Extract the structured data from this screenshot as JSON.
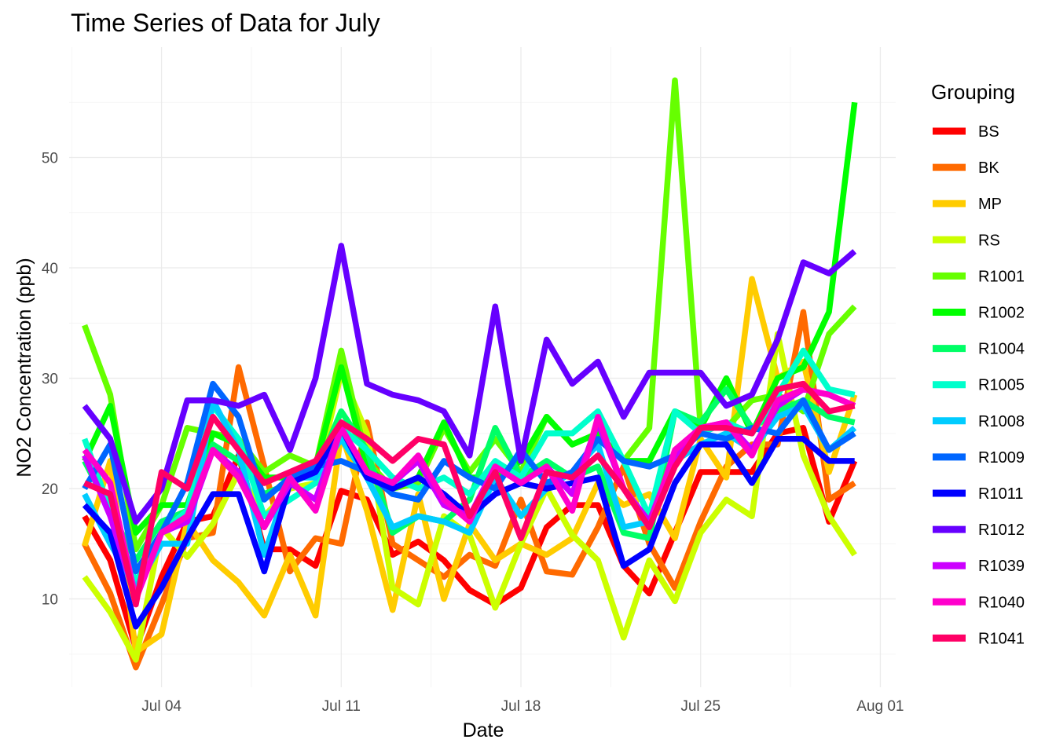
{
  "chart_data": {
    "type": "line",
    "title": "Time Series of Data for July",
    "xlabel": "Date",
    "ylabel": "NO2 Concentration (ppb)",
    "x": [
      "Jul 01",
      "Jul 02",
      "Jul 03",
      "Jul 04",
      "Jul 05",
      "Jul 06",
      "Jul 07",
      "Jul 08",
      "Jul 09",
      "Jul 10",
      "Jul 11",
      "Jul 12",
      "Jul 13",
      "Jul 14",
      "Jul 15",
      "Jul 16",
      "Jul 17",
      "Jul 18",
      "Jul 19",
      "Jul 20",
      "Jul 21",
      "Jul 22",
      "Jul 23",
      "Jul 24",
      "Jul 25",
      "Jul 26",
      "Jul 27",
      "Jul 28",
      "Jul 29",
      "Jul 30",
      "Jul 31"
    ],
    "x_ticks": [
      "Jul 04",
      "Jul 11",
      "Jul 18",
      "Jul 25",
      "Aug 01"
    ],
    "x_tick_index": [
      3,
      10,
      17,
      24,
      31
    ],
    "xlim_index": [
      -0.6,
      31.6
    ],
    "y_ticks": [
      10,
      20,
      30,
      40,
      50
    ],
    "ylim": [
      2,
      60
    ],
    "grid": true,
    "legend": {
      "title": "Grouping",
      "position": "right"
    },
    "series": [
      {
        "name": "BS",
        "color": "#FF0000",
        "values": [
          17.5,
          13.5,
          5.5,
          12,
          17,
          17.5,
          23,
          14.5,
          14.5,
          13,
          19.8,
          19,
          14,
          15.2,
          13.5,
          10.8,
          9.5,
          11,
          16.5,
          18.5,
          18.5,
          13,
          10.5,
          16,
          21.5,
          21.5,
          21.5,
          25,
          25.5,
          17,
          22.5
        ]
      },
      {
        "name": "BK",
        "color": "#FF6A00",
        "values": [
          15,
          10.5,
          3.8,
          9.5,
          15.5,
          16,
          31,
          22,
          12.5,
          15.5,
          15,
          26,
          15,
          13.5,
          12,
          14,
          13,
          19,
          12.5,
          12.2,
          16.5,
          22,
          15,
          11,
          17,
          22,
          24,
          24,
          36,
          19,
          20.5
        ]
      },
      {
        "name": "MP",
        "color": "#FFCC00",
        "values": [
          14.8,
          22.5,
          5.2,
          6.8,
          17,
          13.5,
          11.5,
          8.5,
          14,
          8.5,
          25,
          18,
          9,
          19.5,
          10,
          16.8,
          13.5,
          15,
          14,
          15.5,
          20.5,
          18.5,
          19.5,
          15.5,
          24.5,
          21,
          39,
          30,
          31.5,
          21.5,
          28.5
        ]
      },
      {
        "name": "RS",
        "color": "#CCFF00",
        "values": [
          12,
          8.8,
          4.5,
          16.5,
          13.8,
          16.8,
          21.5,
          17.5,
          20,
          20.5,
          30.5,
          25,
          11,
          9.5,
          17.5,
          15.8,
          9.2,
          15,
          20,
          15.8,
          13.5,
          6.5,
          13.5,
          9.8,
          16,
          19,
          17.5,
          34,
          23,
          17.5,
          14
        ]
      },
      {
        "name": "R1001",
        "color": "#66FF00",
        "values": [
          34.8,
          28.5,
          14.5,
          18.5,
          25.5,
          25,
          24.5,
          21.5,
          23,
          22,
          32.5,
          22.5,
          20,
          20.5,
          25.5,
          21.5,
          24.5,
          21.5,
          26.5,
          24,
          25,
          22.5,
          25.5,
          57,
          25.5,
          25.5,
          28,
          28.5,
          27,
          34,
          36.5
        ]
      },
      {
        "name": "R1002",
        "color": "#00FF00",
        "values": [
          22.5,
          27.5,
          16,
          18.5,
          18.5,
          25,
          24,
          21,
          21,
          22,
          31,
          22,
          20,
          21,
          26,
          21,
          21,
          22.5,
          26.5,
          24,
          25,
          22.5,
          22.5,
          27,
          25.5,
          30,
          25,
          30,
          31,
          36,
          55
        ]
      },
      {
        "name": "R1004",
        "color": "#00FF66",
        "values": [
          22.5,
          18,
          13.5,
          17,
          18,
          24,
          22.5,
          19.5,
          20.5,
          21.5,
          27,
          23.5,
          16,
          17.5,
          17,
          19,
          25.5,
          21,
          22.5,
          21,
          22,
          16,
          15.5,
          27,
          26,
          29,
          25.5,
          27,
          28,
          26.5,
          26
        ]
      },
      {
        "name": "R1005",
        "color": "#00FFCC",
        "values": [
          24.5,
          18,
          11.5,
          16,
          18,
          27.5,
          24.5,
          17.5,
          19,
          20.5,
          25.5,
          23.5,
          21,
          20,
          21,
          19.5,
          22.5,
          21,
          25,
          25,
          27,
          22.5,
          17.5,
          27,
          25,
          26,
          25,
          28.5,
          32.5,
          29,
          28.5
        ]
      },
      {
        "name": "R1008",
        "color": "#00CCFF",
        "values": [
          19.5,
          15,
          11,
          15,
          15,
          28,
          23.5,
          14,
          21,
          21,
          24.5,
          21,
          16.5,
          17.5,
          17,
          16,
          21,
          17.5,
          20,
          21.5,
          24,
          16.5,
          17,
          22.5,
          24,
          25,
          23.5,
          26.5,
          27.5,
          23.5,
          25.5
        ]
      },
      {
        "name": "R1009",
        "color": "#0066FF",
        "values": [
          20,
          24,
          12.5,
          16,
          20.5,
          29.5,
          26.5,
          19,
          21,
          22,
          22.5,
          21.5,
          19.5,
          19,
          22.5,
          21,
          20,
          23.5,
          20.5,
          21.5,
          24.5,
          22.5,
          22,
          23,
          25,
          24.5,
          25.5,
          25,
          28,
          23.5,
          25
        ]
      },
      {
        "name": "R1011",
        "color": "#0000FF",
        "values": [
          18.5,
          16,
          7.5,
          11,
          15.5,
          19.5,
          19.5,
          12.5,
          20.5,
          21.5,
          25.5,
          21,
          20,
          21,
          19.5,
          17.5,
          19.5,
          20.5,
          20,
          20.5,
          21,
          13,
          14.5,
          20.5,
          24,
          24,
          20.5,
          24.5,
          24.5,
          22.5,
          22.5
        ]
      },
      {
        "name": "R1012",
        "color": "#6600FF",
        "values": [
          27.5,
          24.5,
          17,
          20,
          28,
          28,
          27.5,
          28.5,
          23.5,
          30,
          42,
          29.5,
          28.5,
          28,
          27,
          23,
          36.5,
          22.5,
          33.5,
          29.5,
          31.5,
          26.5,
          30.5,
          30.5,
          30.5,
          27.5,
          28.5,
          33.5,
          40.5,
          39.5,
          41.5
        ]
      },
      {
        "name": "R1039",
        "color": "#CC00FF",
        "values": [
          23,
          17.5,
          10,
          16,
          17,
          23.5,
          21.5,
          16.5,
          20.5,
          19,
          25.5,
          21.5,
          20.5,
          22.5,
          18.5,
          17.5,
          22,
          20.5,
          22,
          19.5,
          26,
          20,
          17,
          23,
          25.5,
          26,
          23.5,
          27.5,
          29,
          28.5,
          27.5
        ]
      },
      {
        "name": "R1040",
        "color": "#FF00CC",
        "values": [
          23.5,
          20.5,
          10,
          16,
          17.5,
          23.5,
          21,
          16.5,
          21,
          18,
          25.5,
          21.5,
          20.5,
          23,
          19,
          17,
          22,
          20.5,
          22,
          18,
          26.5,
          20,
          16.5,
          23.5,
          25.5,
          26,
          23,
          28,
          29,
          28.5,
          27.5
        ]
      },
      {
        "name": "R1041",
        "color": "#FF0066",
        "values": [
          20.5,
          19.5,
          9.5,
          21.5,
          20,
          26.5,
          23.5,
          20.5,
          21.5,
          22.5,
          26,
          24.5,
          22.5,
          24.5,
          24,
          17.5,
          21.5,
          15.5,
          21.5,
          21,
          23,
          20,
          16.5,
          22,
          25.5,
          25.5,
          25,
          29,
          29.5,
          27,
          27.5
        ]
      }
    ]
  }
}
